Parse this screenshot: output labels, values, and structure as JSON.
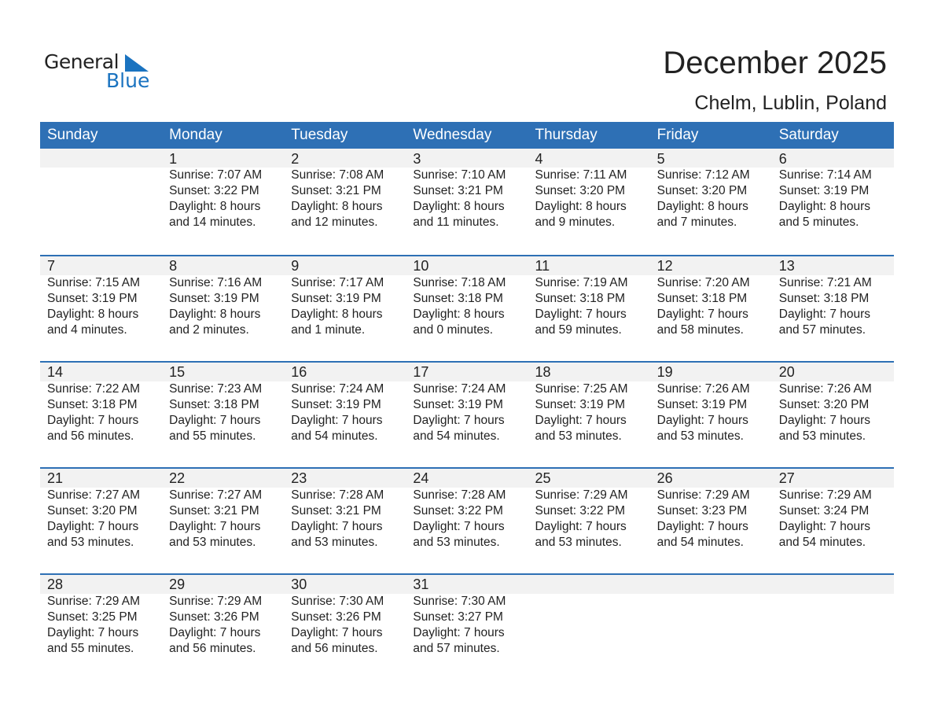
{
  "logo": {
    "line1": "General",
    "line2": "Blue",
    "color": "#1a73c0"
  },
  "title": "December 2025",
  "location": "Chelm, Lublin, Poland",
  "header_color": "#2e70b5",
  "days": [
    "Sunday",
    "Monday",
    "Tuesday",
    "Wednesday",
    "Thursday",
    "Friday",
    "Saturday"
  ],
  "weeks": [
    [
      null,
      {
        "d": "1",
        "sr": "Sunrise: 7:07 AM",
        "ss": "Sunset: 3:22 PM",
        "dl": "Daylight: 8 hours",
        "dm": "and 14 minutes."
      },
      {
        "d": "2",
        "sr": "Sunrise: 7:08 AM",
        "ss": "Sunset: 3:21 PM",
        "dl": "Daylight: 8 hours",
        "dm": "and 12 minutes."
      },
      {
        "d": "3",
        "sr": "Sunrise: 7:10 AM",
        "ss": "Sunset: 3:21 PM",
        "dl": "Daylight: 8 hours",
        "dm": "and 11 minutes."
      },
      {
        "d": "4",
        "sr": "Sunrise: 7:11 AM",
        "ss": "Sunset: 3:20 PM",
        "dl": "Daylight: 8 hours",
        "dm": "and 9 minutes."
      },
      {
        "d": "5",
        "sr": "Sunrise: 7:12 AM",
        "ss": "Sunset: 3:20 PM",
        "dl": "Daylight: 8 hours",
        "dm": "and 7 minutes."
      },
      {
        "d": "6",
        "sr": "Sunrise: 7:14 AM",
        "ss": "Sunset: 3:19 PM",
        "dl": "Daylight: 8 hours",
        "dm": "and 5 minutes."
      }
    ],
    [
      {
        "d": "7",
        "sr": "Sunrise: 7:15 AM",
        "ss": "Sunset: 3:19 PM",
        "dl": "Daylight: 8 hours",
        "dm": "and 4 minutes."
      },
      {
        "d": "8",
        "sr": "Sunrise: 7:16 AM",
        "ss": "Sunset: 3:19 PM",
        "dl": "Daylight: 8 hours",
        "dm": "and 2 minutes."
      },
      {
        "d": "9",
        "sr": "Sunrise: 7:17 AM",
        "ss": "Sunset: 3:19 PM",
        "dl": "Daylight: 8 hours",
        "dm": "and 1 minute."
      },
      {
        "d": "10",
        "sr": "Sunrise: 7:18 AM",
        "ss": "Sunset: 3:18 PM",
        "dl": "Daylight: 8 hours",
        "dm": "and 0 minutes."
      },
      {
        "d": "11",
        "sr": "Sunrise: 7:19 AM",
        "ss": "Sunset: 3:18 PM",
        "dl": "Daylight: 7 hours",
        "dm": "and 59 minutes."
      },
      {
        "d": "12",
        "sr": "Sunrise: 7:20 AM",
        "ss": "Sunset: 3:18 PM",
        "dl": "Daylight: 7 hours",
        "dm": "and 58 minutes."
      },
      {
        "d": "13",
        "sr": "Sunrise: 7:21 AM",
        "ss": "Sunset: 3:18 PM",
        "dl": "Daylight: 7 hours",
        "dm": "and 57 minutes."
      }
    ],
    [
      {
        "d": "14",
        "sr": "Sunrise: 7:22 AM",
        "ss": "Sunset: 3:18 PM",
        "dl": "Daylight: 7 hours",
        "dm": "and 56 minutes."
      },
      {
        "d": "15",
        "sr": "Sunrise: 7:23 AM",
        "ss": "Sunset: 3:18 PM",
        "dl": "Daylight: 7 hours",
        "dm": "and 55 minutes."
      },
      {
        "d": "16",
        "sr": "Sunrise: 7:24 AM",
        "ss": "Sunset: 3:19 PM",
        "dl": "Daylight: 7 hours",
        "dm": "and 54 minutes."
      },
      {
        "d": "17",
        "sr": "Sunrise: 7:24 AM",
        "ss": "Sunset: 3:19 PM",
        "dl": "Daylight: 7 hours",
        "dm": "and 54 minutes."
      },
      {
        "d": "18",
        "sr": "Sunrise: 7:25 AM",
        "ss": "Sunset: 3:19 PM",
        "dl": "Daylight: 7 hours",
        "dm": "and 53 minutes."
      },
      {
        "d": "19",
        "sr": "Sunrise: 7:26 AM",
        "ss": "Sunset: 3:19 PM",
        "dl": "Daylight: 7 hours",
        "dm": "and 53 minutes."
      },
      {
        "d": "20",
        "sr": "Sunrise: 7:26 AM",
        "ss": "Sunset: 3:20 PM",
        "dl": "Daylight: 7 hours",
        "dm": "and 53 minutes."
      }
    ],
    [
      {
        "d": "21",
        "sr": "Sunrise: 7:27 AM",
        "ss": "Sunset: 3:20 PM",
        "dl": "Daylight: 7 hours",
        "dm": "and 53 minutes."
      },
      {
        "d": "22",
        "sr": "Sunrise: 7:27 AM",
        "ss": "Sunset: 3:21 PM",
        "dl": "Daylight: 7 hours",
        "dm": "and 53 minutes."
      },
      {
        "d": "23",
        "sr": "Sunrise: 7:28 AM",
        "ss": "Sunset: 3:21 PM",
        "dl": "Daylight: 7 hours",
        "dm": "and 53 minutes."
      },
      {
        "d": "24",
        "sr": "Sunrise: 7:28 AM",
        "ss": "Sunset: 3:22 PM",
        "dl": "Daylight: 7 hours",
        "dm": "and 53 minutes."
      },
      {
        "d": "25",
        "sr": "Sunrise: 7:29 AM",
        "ss": "Sunset: 3:22 PM",
        "dl": "Daylight: 7 hours",
        "dm": "and 53 minutes."
      },
      {
        "d": "26",
        "sr": "Sunrise: 7:29 AM",
        "ss": "Sunset: 3:23 PM",
        "dl": "Daylight: 7 hours",
        "dm": "and 54 minutes."
      },
      {
        "d": "27",
        "sr": "Sunrise: 7:29 AM",
        "ss": "Sunset: 3:24 PM",
        "dl": "Daylight: 7 hours",
        "dm": "and 54 minutes."
      }
    ],
    [
      {
        "d": "28",
        "sr": "Sunrise: 7:29 AM",
        "ss": "Sunset: 3:25 PM",
        "dl": "Daylight: 7 hours",
        "dm": "and 55 minutes."
      },
      {
        "d": "29",
        "sr": "Sunrise: 7:29 AM",
        "ss": "Sunset: 3:26 PM",
        "dl": "Daylight: 7 hours",
        "dm": "and 56 minutes."
      },
      {
        "d": "30",
        "sr": "Sunrise: 7:30 AM",
        "ss": "Sunset: 3:26 PM",
        "dl": "Daylight: 7 hours",
        "dm": "and 56 minutes."
      },
      {
        "d": "31",
        "sr": "Sunrise: 7:30 AM",
        "ss": "Sunset: 3:27 PM",
        "dl": "Daylight: 7 hours",
        "dm": "and 57 minutes."
      },
      null,
      null,
      null
    ]
  ]
}
